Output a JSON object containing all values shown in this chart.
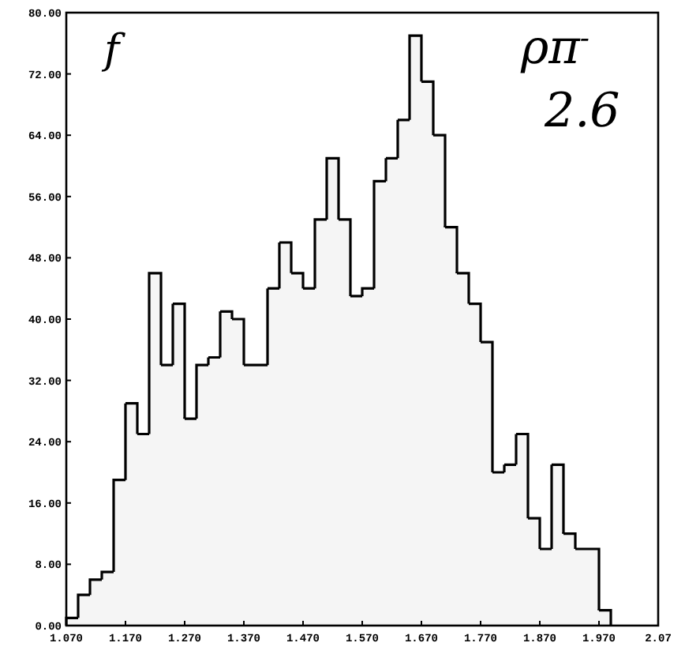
{
  "chart_data": {
    "type": "histogram",
    "bins": [
      1.07,
      1.09,
      1.11,
      1.13,
      1.15,
      1.17,
      1.19,
      1.21,
      1.23,
      1.25,
      1.27,
      1.29,
      1.31,
      1.33,
      1.35,
      1.37,
      1.39,
      1.41,
      1.43,
      1.45,
      1.47,
      1.49,
      1.51,
      1.53,
      1.55,
      1.57,
      1.59,
      1.61,
      1.63,
      1.65,
      1.67,
      1.69,
      1.71,
      1.73,
      1.75,
      1.77,
      1.79,
      1.81,
      1.83,
      1.85,
      1.87,
      1.89,
      1.91,
      1.93,
      1.95,
      1.97,
      1.99,
      2.01,
      2.03,
      2.05,
      2.07
    ],
    "values": [
      1,
      4,
      6,
      7,
      19,
      29,
      25,
      46,
      34,
      42,
      27,
      34,
      35,
      41,
      40,
      34,
      34,
      44,
      50,
      46,
      44,
      53,
      61,
      53,
      43,
      44,
      58,
      61,
      66,
      77,
      71,
      64,
      52,
      46,
      42,
      37,
      20,
      21,
      25,
      14,
      10,
      21,
      12,
      10,
      10,
      2,
      0,
      0,
      0,
      0
    ],
    "color": "#000000",
    "xlim": [
      1.07,
      2.07
    ],
    "xticks": [
      {
        "value": 1.07,
        "label": "1.070"
      },
      {
        "value": 1.17,
        "label": "1.170"
      },
      {
        "value": 1.27,
        "label": "1.270"
      },
      {
        "value": 1.37,
        "label": "1.370"
      },
      {
        "value": 1.47,
        "label": "1.470"
      },
      {
        "value": 1.57,
        "label": "1.570"
      },
      {
        "value": 1.67,
        "label": "1.670"
      },
      {
        "value": 1.77,
        "label": "1.770"
      },
      {
        "value": 1.87,
        "label": "1.870"
      },
      {
        "value": 1.97,
        "label": "1.970"
      },
      {
        "value": 2.07,
        "label": "2.07"
      }
    ],
    "ylim": [
      0,
      80
    ],
    "yticks": [
      {
        "value": 0,
        "label": "0.00"
      },
      {
        "value": 8,
        "label": "8.00"
      },
      {
        "value": 16,
        "label": "16.00"
      },
      {
        "value": 24,
        "label": "24.00"
      },
      {
        "value": 32,
        "label": "32.00"
      },
      {
        "value": 40,
        "label": "40.00"
      },
      {
        "value": 48,
        "label": "48.00"
      },
      {
        "value": 56,
        "label": "56.00"
      },
      {
        "value": 64,
        "label": "64.00"
      },
      {
        "value": 72,
        "label": "72.00"
      },
      {
        "value": 80,
        "label": "80.00"
      }
    ],
    "annotations": [
      "f",
      "ρπ$^{-}$",
      "2.6"
    ],
    "grid": false
  }
}
